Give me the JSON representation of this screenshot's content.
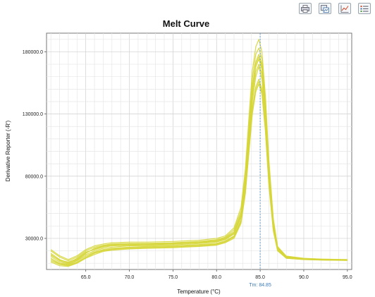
{
  "toolbar": {
    "buttons": [
      {
        "icon": "print-icon"
      },
      {
        "icon": "save-image-icon"
      },
      {
        "icon": "line-chart-icon"
      },
      {
        "icon": "legend-list-icon"
      }
    ]
  },
  "chart_data": {
    "type": "line",
    "title": "Melt Curve",
    "xlabel": "Temperature (°C)",
    "ylabel": "Derivative Reporter (-R')",
    "xlim": [
      60.5,
      95.5
    ],
    "ylim": [
      5000,
      195000
    ],
    "x_ticks": [
      65.0,
      70.0,
      75.0,
      80.0,
      85.0,
      90.0,
      95.0
    ],
    "x_tick_labels": [
      "65.0",
      "70.0",
      "75.0",
      "80.0",
      "85.0",
      "90.0",
      "95.0"
    ],
    "y_ticks": [
      30000,
      80000,
      130000,
      180000
    ],
    "y_tick_labels": [
      "30000.0",
      "80000.0",
      "130000.0",
      "180000.0"
    ],
    "grid": true,
    "legend": "none",
    "line_color": "#d6d63a",
    "marker": {
      "x": 85.0,
      "label": "Tm: 84.85",
      "color": "#5b93c9"
    },
    "series_x": [
      61,
      62,
      63,
      64,
      65,
      66,
      67,
      68,
      70,
      72,
      75,
      78,
      80,
      81,
      82,
      82.8,
      83.3,
      83.7,
      84.1,
      84.5,
      84.85,
      85.2,
      85.6,
      86,
      86.5,
      87,
      88,
      90,
      92,
      94,
      95
    ],
    "series": [
      {
        "values": [
          17000,
          12000,
          10000,
          14000,
          19000,
          21000,
          23000,
          24000,
          24500,
          24800,
          25500,
          26500,
          27500,
          29500,
          34000,
          48000,
          75000,
          112000,
          148000,
          170000,
          176000,
          168000,
          135000,
          85000,
          42000,
          22000,
          15000,
          13500,
          13000,
          12800,
          12700
        ]
      },
      {
        "values": [
          14000,
          10000,
          9000,
          12000,
          16000,
          19000,
          21000,
          22000,
          23000,
          23500,
          24000,
          25000,
          26000,
          28000,
          32000,
          45000,
          70000,
          105000,
          140000,
          160000,
          168000,
          158000,
          125000,
          78000,
          39000,
          21000,
          14500,
          13200,
          12800,
          12600,
          12500
        ]
      },
      {
        "values": [
          20000,
          15000,
          12000,
          15000,
          20000,
          23000,
          24500,
          25500,
          26000,
          26000,
          26500,
          27500,
          29000,
          31000,
          37000,
          52000,
          82000,
          120000,
          158000,
          178000,
          183000,
          174000,
          140000,
          90000,
          45000,
          23000,
          15500,
          13800,
          13300,
          13000,
          12900
        ]
      },
      {
        "values": [
          11000,
          8000,
          7500,
          10000,
          14000,
          17000,
          19500,
          20500,
          21500,
          22000,
          22500,
          23500,
          24500,
          26500,
          30000,
          42000,
          66000,
          98000,
          130000,
          148000,
          154000,
          146000,
          116000,
          72000,
          36000,
          20000,
          14000,
          13000,
          12600,
          12400,
          12300
        ]
      },
      {
        "values": [
          18000,
          13000,
          10500,
          13000,
          18000,
          22000,
          24000,
          25000,
          25500,
          25800,
          26200,
          27000,
          28500,
          30500,
          35500,
          50000,
          78000,
          116000,
          152000,
          172000,
          178000,
          170000,
          137000,
          87000,
          43000,
          22500,
          15200,
          13600,
          13100,
          12900,
          12800
        ]
      },
      {
        "values": [
          13000,
          9500,
          8500,
          11000,
          15000,
          18500,
          20500,
          21500,
          22500,
          23000,
          23500,
          24500,
          25500,
          27500,
          31500,
          44000,
          68000,
          101000,
          135000,
          152000,
          158000,
          150000,
          120000,
          75000,
          37500,
          20500,
          14200,
          13100,
          12700,
          12500,
          12400
        ]
      },
      {
        "values": [
          21000,
          16000,
          13000,
          16000,
          21000,
          24000,
          25500,
          26500,
          27000,
          27000,
          27500,
          28500,
          30000,
          32000,
          38500,
          55000,
          86000,
          126000,
          165000,
          184000,
          190000,
          180000,
          145000,
          93000,
          46000,
          23500,
          15800,
          14000,
          13400,
          13100,
          13000
        ]
      },
      {
        "values": [
          15500,
          11000,
          9500,
          12500,
          17000,
          20000,
          22000,
          23000,
          24000,
          24200,
          24800,
          25800,
          27000,
          29000,
          33500,
          47000,
          73000,
          109000,
          144000,
          164000,
          170000,
          162000,
          130000,
          82000,
          40500,
          21500,
          14800,
          13400,
          12900,
          12700,
          12600
        ]
      },
      {
        "values": [
          16500,
          12500,
          11000,
          13500,
          18500,
          21500,
          23500,
          24500,
          25000,
          25300,
          25800,
          26800,
          28000,
          30000,
          34500,
          49000,
          76000,
          114000,
          150000,
          168000,
          174000,
          166000,
          133000,
          84000,
          41500,
          22000,
          15000,
          13500,
          13000,
          12800,
          12700
        ]
      },
      {
        "values": [
          12000,
          9000,
          8000,
          10500,
          14500,
          18000,
          20000,
          21000,
          22000,
          22500,
          23000,
          24000,
          25000,
          27000,
          31000,
          43000,
          67000,
          100000,
          133000,
          150000,
          156000,
          148000,
          118000,
          74000,
          37000,
          20200,
          14100,
          13000,
          12650,
          12450,
          12350
        ]
      }
    ]
  }
}
